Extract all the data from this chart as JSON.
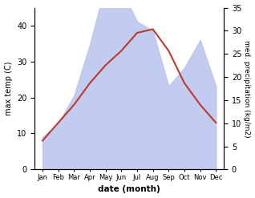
{
  "months": [
    "Jan",
    "Feb",
    "Mar",
    "Apr",
    "May",
    "Jun",
    "Jul",
    "Aug",
    "Sep",
    "Oct",
    "Nov",
    "Dec"
  ],
  "month_positions": [
    0,
    1,
    2,
    3,
    4,
    5,
    6,
    7,
    8,
    9,
    10,
    11
  ],
  "max_temp": [
    8,
    13,
    18,
    24,
    29,
    33,
    38,
    39,
    33,
    24,
    18,
    13
  ],
  "precipitation_mm": [
    7,
    10,
    16,
    27,
    40,
    39,
    32,
    30,
    18,
    22,
    28,
    18
  ],
  "temp_color": "#c0392b",
  "precip_fill_color": "#b8c4ee",
  "ylabel_left": "max temp (C)",
  "ylabel_right": "med. precipitation (kg/m2)",
  "xlabel": "date (month)",
  "ylim_left": [
    0,
    45
  ],
  "ylim_right": [
    0,
    35
  ],
  "yticks_left": [
    0,
    10,
    20,
    30,
    40
  ],
  "yticks_right": [
    0,
    5,
    10,
    15,
    20,
    25,
    30,
    35
  ],
  "background_color": "#ffffff"
}
